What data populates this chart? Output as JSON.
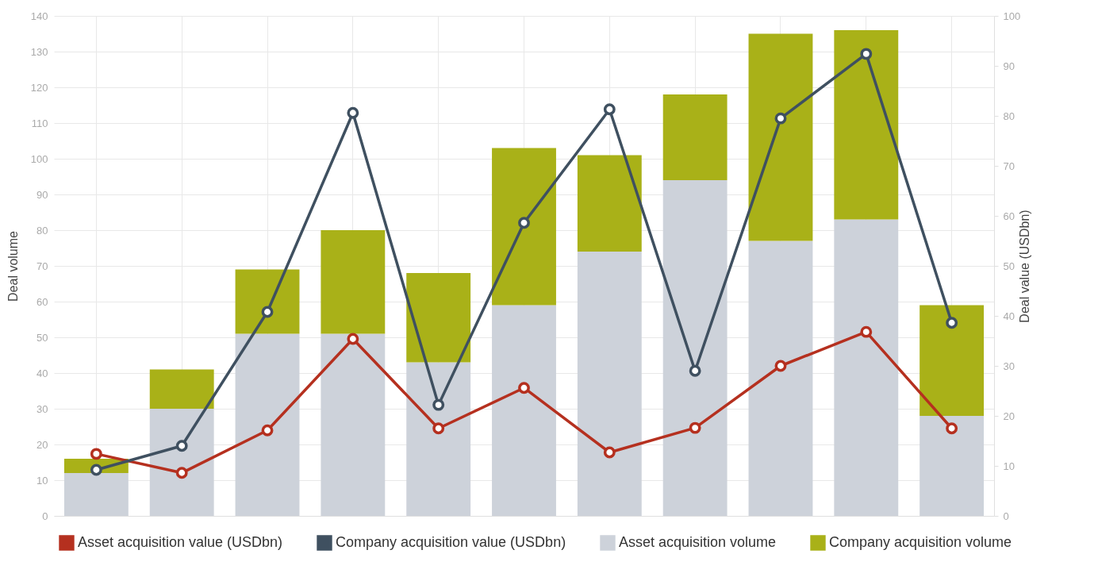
{
  "chart_data": {
    "type": "bar",
    "stacked": true,
    "xlabel": null,
    "ylabel": "Deal volume",
    "y2label": "Deal value (USDbn)",
    "categories": [
      null,
      null,
      null,
      null,
      null,
      null,
      null,
      null,
      null,
      null,
      null
    ],
    "series": [
      {
        "name": "Asset acquisition value (USDbn)",
        "type": "line",
        "axis": "y2",
        "color": "#b5301f",
        "values": [
          12.4,
          8.6,
          17.1,
          35.4,
          17.5,
          25.6,
          12.7,
          17.6,
          30.0,
          36.8,
          17.5
        ]
      },
      {
        "name": "Company acquisition value (USDbn)",
        "type": "line",
        "axis": "y2",
        "color": "#3f5060",
        "values": [
          9.2,
          14.0,
          40.8,
          80.6,
          22.2,
          58.6,
          81.3,
          29.0,
          79.5,
          92.4,
          38.6
        ]
      },
      {
        "name": "Asset acquisition volume",
        "color": "#cdd2da",
        "values": [
          12,
          30,
          51,
          51,
          43,
          59,
          74,
          94,
          77,
          83,
          28
        ]
      },
      {
        "name": "Company acquisition volume",
        "color": "#a9b118",
        "values": [
          4,
          11,
          18,
          29,
          25,
          44,
          27,
          24,
          58,
          53,
          31
        ]
      }
    ],
    "ylim": [
      0,
      140
    ],
    "yticks": [
      0,
      10,
      20,
      30,
      40,
      50,
      60,
      70,
      80,
      90,
      100,
      110,
      120,
      130,
      140
    ],
    "y2lim": [
      0,
      100
    ],
    "y2ticks": [
      0,
      10,
      20,
      30,
      40,
      50,
      60,
      70,
      80,
      90,
      100
    ],
    "grid": true,
    "legend": "bottom",
    "marker": "circle",
    "line_style": "solid",
    "tick_labels": "y"
  }
}
